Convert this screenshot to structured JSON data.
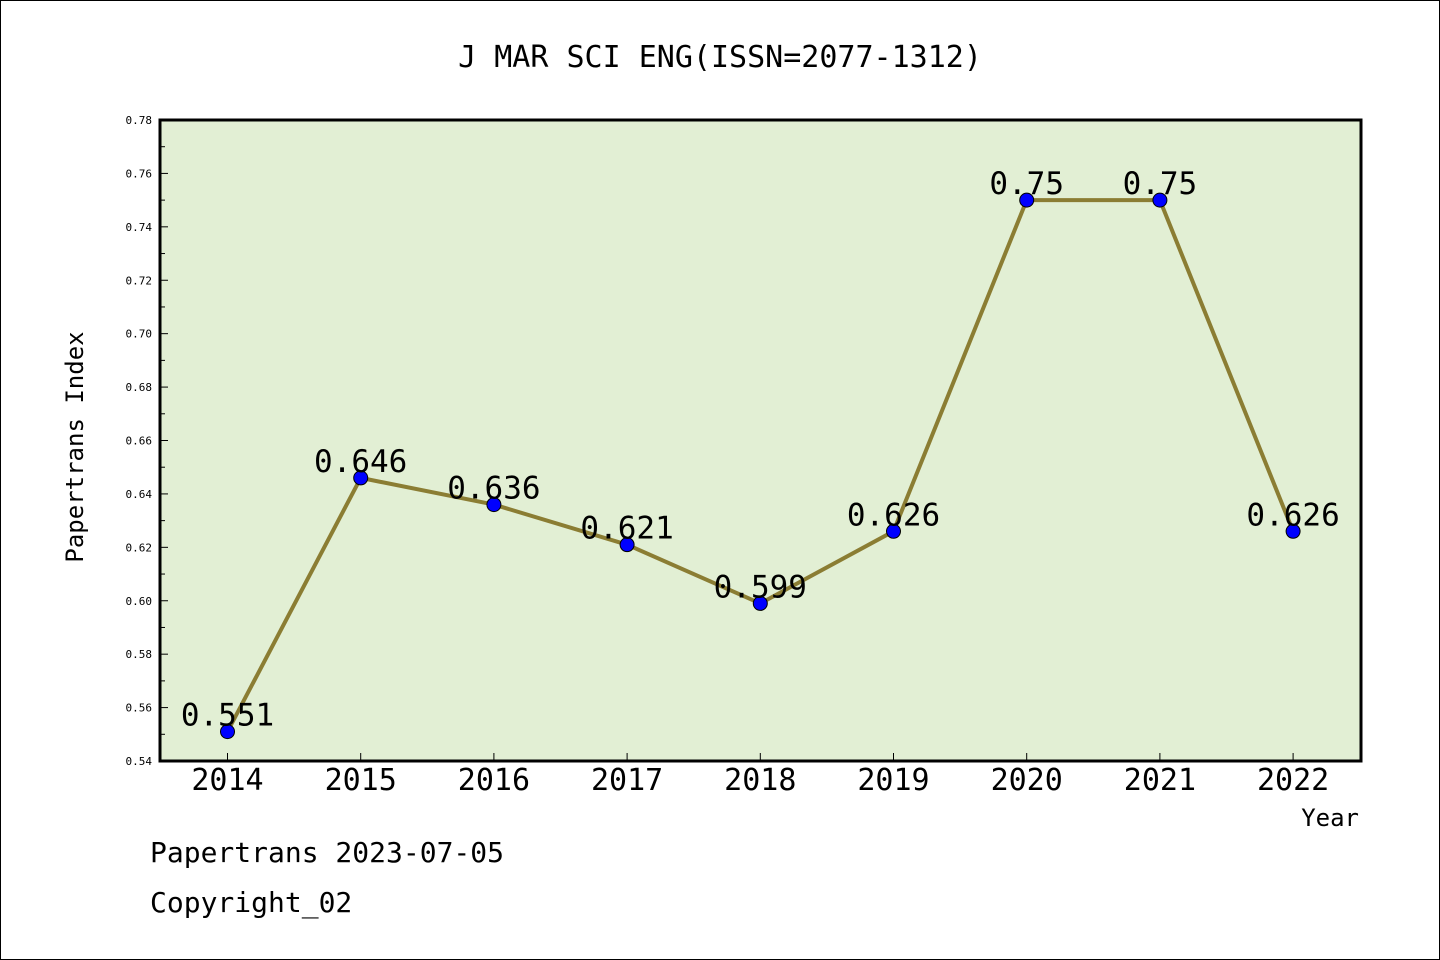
{
  "chart_data": {
    "type": "line",
    "title": "J MAR SCI ENG(ISSN=2077-1312)",
    "xlabel": "Year",
    "ylabel": "Papertrans Index",
    "categories": [
      "2014",
      "2015",
      "2016",
      "2017",
      "2018",
      "2019",
      "2020",
      "2021",
      "2022"
    ],
    "values": [
      0.551,
      0.646,
      0.636,
      0.621,
      0.599,
      0.626,
      0.75,
      0.75,
      0.626
    ],
    "data_labels": [
      "0.551",
      "0.646",
      "0.636",
      "0.621",
      "0.599",
      "0.626",
      "0.75",
      "0.75",
      "0.626"
    ],
    "ylim": [
      0.54,
      0.78
    ],
    "yticks": [
      "0.54",
      "0.56",
      "0.58",
      "0.60",
      "0.62",
      "0.64",
      "0.66",
      "0.68",
      "0.70",
      "0.72",
      "0.74",
      "0.76",
      "0.78"
    ],
    "grid": false,
    "colors": {
      "line": "#8b7d33",
      "marker": "#0000ff",
      "plot_background": "#e2efd4"
    }
  },
  "footer": {
    "date_line": "Papertrans 2023-07-05",
    "copyright": "Copyright_02"
  }
}
